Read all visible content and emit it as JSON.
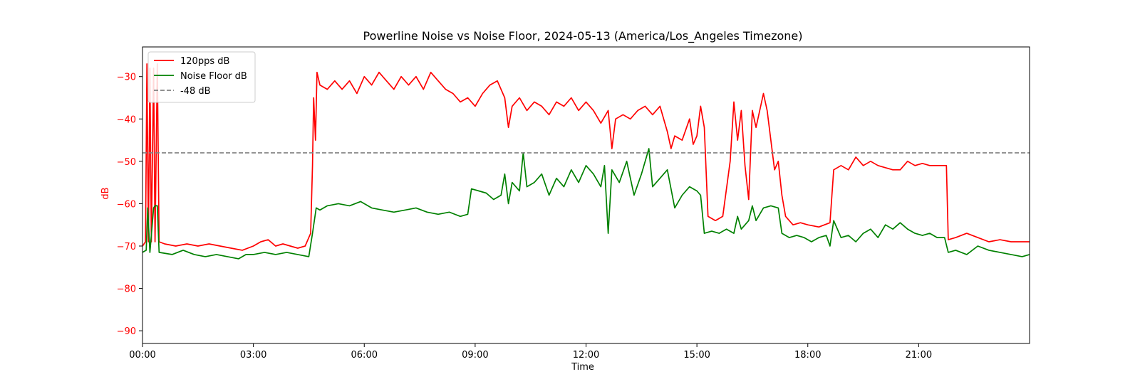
{
  "chart_data": {
    "type": "line",
    "title": "Powerline Noise vs Noise Floor, 2024-05-13 (America/Los_Angeles Timezone)",
    "xlabel": "Time",
    "ylabel": "dB",
    "x_unit": "hours",
    "xlim": [
      0,
      24
    ],
    "ylim": [
      -93,
      -23
    ],
    "x_ticks": [
      {
        "value": 0,
        "label": "00:00"
      },
      {
        "value": 3,
        "label": "03:00"
      },
      {
        "value": 6,
        "label": "06:00"
      },
      {
        "value": 9,
        "label": "09:00"
      },
      {
        "value": 12,
        "label": "12:00"
      },
      {
        "value": 15,
        "label": "15:00"
      },
      {
        "value": 18,
        "label": "18:00"
      },
      {
        "value": 21,
        "label": "21:00"
      }
    ],
    "y_ticks": [
      {
        "value": -30,
        "label": "−30"
      },
      {
        "value": -40,
        "label": "−40"
      },
      {
        "value": -50,
        "label": "−50"
      },
      {
        "value": -60,
        "label": "−60"
      },
      {
        "value": -70,
        "label": "−70"
      },
      {
        "value": -80,
        "label": "−80"
      },
      {
        "value": -90,
        "label": "−90"
      }
    ],
    "grid": false,
    "legend_position": "top-left",
    "series": [
      {
        "name": "120pps dB",
        "color": "#ff0000",
        "style": "solid",
        "points": [
          [
            0.0,
            -70
          ],
          [
            0.08,
            -69
          ],
          [
            0.12,
            -27
          ],
          [
            0.16,
            -69
          ],
          [
            0.2,
            -28
          ],
          [
            0.24,
            -69
          ],
          [
            0.3,
            -28
          ],
          [
            0.34,
            -69
          ],
          [
            0.4,
            -27
          ],
          [
            0.45,
            -69
          ],
          [
            0.6,
            -69.5
          ],
          [
            0.9,
            -70
          ],
          [
            1.2,
            -69.5
          ],
          [
            1.5,
            -70
          ],
          [
            1.8,
            -69.5
          ],
          [
            2.1,
            -70
          ],
          [
            2.4,
            -70.5
          ],
          [
            2.7,
            -71
          ],
          [
            3.0,
            -70
          ],
          [
            3.2,
            -69
          ],
          [
            3.4,
            -68.5
          ],
          [
            3.6,
            -70
          ],
          [
            3.8,
            -69.5
          ],
          [
            4.0,
            -70
          ],
          [
            4.2,
            -70.5
          ],
          [
            4.4,
            -70
          ],
          [
            4.55,
            -67
          ],
          [
            4.6,
            -51
          ],
          [
            4.63,
            -35
          ],
          [
            4.68,
            -45
          ],
          [
            4.72,
            -29
          ],
          [
            4.8,
            -32
          ],
          [
            5.0,
            -33
          ],
          [
            5.2,
            -31
          ],
          [
            5.4,
            -33
          ],
          [
            5.6,
            -31
          ],
          [
            5.8,
            -34
          ],
          [
            6.0,
            -30
          ],
          [
            6.2,
            -32
          ],
          [
            6.4,
            -29
          ],
          [
            6.6,
            -31
          ],
          [
            6.8,
            -33
          ],
          [
            7.0,
            -30
          ],
          [
            7.2,
            -32
          ],
          [
            7.4,
            -30
          ],
          [
            7.6,
            -33
          ],
          [
            7.8,
            -29
          ],
          [
            8.0,
            -31
          ],
          [
            8.2,
            -33
          ],
          [
            8.4,
            -34
          ],
          [
            8.6,
            -36
          ],
          [
            8.8,
            -35
          ],
          [
            9.0,
            -37
          ],
          [
            9.2,
            -34
          ],
          [
            9.4,
            -32
          ],
          [
            9.6,
            -31
          ],
          [
            9.8,
            -35
          ],
          [
            9.9,
            -42
          ],
          [
            10.0,
            -37
          ],
          [
            10.2,
            -35
          ],
          [
            10.4,
            -38
          ],
          [
            10.6,
            -36
          ],
          [
            10.8,
            -37
          ],
          [
            11.0,
            -39
          ],
          [
            11.2,
            -36
          ],
          [
            11.4,
            -37
          ],
          [
            11.6,
            -35
          ],
          [
            11.8,
            -38
          ],
          [
            12.0,
            -36
          ],
          [
            12.2,
            -38
          ],
          [
            12.4,
            -41
          ],
          [
            12.6,
            -38
          ],
          [
            12.7,
            -47
          ],
          [
            12.8,
            -40
          ],
          [
            13.0,
            -39
          ],
          [
            13.2,
            -40
          ],
          [
            13.4,
            -38
          ],
          [
            13.6,
            -37
          ],
          [
            13.8,
            -39
          ],
          [
            14.0,
            -37
          ],
          [
            14.2,
            -43
          ],
          [
            14.3,
            -47
          ],
          [
            14.4,
            -44
          ],
          [
            14.6,
            -45
          ],
          [
            14.8,
            -40
          ],
          [
            14.9,
            -46
          ],
          [
            15.0,
            -44
          ],
          [
            15.1,
            -37
          ],
          [
            15.2,
            -42
          ],
          [
            15.3,
            -63
          ],
          [
            15.5,
            -64
          ],
          [
            15.7,
            -63
          ],
          [
            15.9,
            -50
          ],
          [
            16.0,
            -36
          ],
          [
            16.1,
            -45
          ],
          [
            16.2,
            -38
          ],
          [
            16.3,
            -51
          ],
          [
            16.4,
            -59
          ],
          [
            16.5,
            -38
          ],
          [
            16.6,
            -42
          ],
          [
            16.8,
            -34
          ],
          [
            16.9,
            -38
          ],
          [
            17.0,
            -45
          ],
          [
            17.1,
            -52
          ],
          [
            17.2,
            -50
          ],
          [
            17.3,
            -58
          ],
          [
            17.4,
            -63
          ],
          [
            17.6,
            -65
          ],
          [
            17.8,
            -64.5
          ],
          [
            18.0,
            -65
          ],
          [
            18.3,
            -65.5
          ],
          [
            18.6,
            -64.5
          ],
          [
            18.7,
            -52
          ],
          [
            18.9,
            -51
          ],
          [
            19.1,
            -52
          ],
          [
            19.3,
            -49
          ],
          [
            19.5,
            -51
          ],
          [
            19.7,
            -50
          ],
          [
            19.9,
            -51
          ],
          [
            20.1,
            -51.5
          ],
          [
            20.3,
            -52
          ],
          [
            20.5,
            -52
          ],
          [
            20.7,
            -50
          ],
          [
            20.9,
            -51
          ],
          [
            21.1,
            -50.5
          ],
          [
            21.3,
            -51
          ],
          [
            21.5,
            -51
          ],
          [
            21.75,
            -51
          ],
          [
            21.8,
            -68.5
          ],
          [
            22.0,
            -68
          ],
          [
            22.3,
            -67
          ],
          [
            22.6,
            -68
          ],
          [
            22.9,
            -69
          ],
          [
            23.2,
            -68.5
          ],
          [
            23.5,
            -69
          ],
          [
            23.8,
            -69
          ],
          [
            24.0,
            -69
          ]
        ]
      },
      {
        "name": "Noise Floor dB",
        "color": "#008000",
        "style": "solid",
        "points": [
          [
            0.0,
            -71.5
          ],
          [
            0.1,
            -71
          ],
          [
            0.14,
            -61
          ],
          [
            0.2,
            -71.5
          ],
          [
            0.3,
            -61
          ],
          [
            0.34,
            -60.5
          ],
          [
            0.4,
            -60.5
          ],
          [
            0.45,
            -71.5
          ],
          [
            0.8,
            -72
          ],
          [
            1.1,
            -71
          ],
          [
            1.4,
            -72
          ],
          [
            1.7,
            -72.5
          ],
          [
            2.0,
            -72
          ],
          [
            2.3,
            -72.5
          ],
          [
            2.6,
            -73
          ],
          [
            2.8,
            -72
          ],
          [
            3.0,
            -72
          ],
          [
            3.3,
            -71.5
          ],
          [
            3.6,
            -72
          ],
          [
            3.9,
            -71.5
          ],
          [
            4.2,
            -72
          ],
          [
            4.5,
            -72.5
          ],
          [
            4.6,
            -67
          ],
          [
            4.7,
            -61
          ],
          [
            4.8,
            -61.5
          ],
          [
            5.0,
            -60.5
          ],
          [
            5.3,
            -60
          ],
          [
            5.6,
            -60.5
          ],
          [
            5.9,
            -59.5
          ],
          [
            6.2,
            -61
          ],
          [
            6.5,
            -61.5
          ],
          [
            6.8,
            -62
          ],
          [
            7.1,
            -61.5
          ],
          [
            7.4,
            -61
          ],
          [
            7.7,
            -62
          ],
          [
            8.0,
            -62.5
          ],
          [
            8.3,
            -62
          ],
          [
            8.6,
            -63
          ],
          [
            8.8,
            -62.5
          ],
          [
            8.9,
            -56.5
          ],
          [
            9.1,
            -57
          ],
          [
            9.3,
            -57.5
          ],
          [
            9.5,
            -59
          ],
          [
            9.7,
            -58
          ],
          [
            9.8,
            -53
          ],
          [
            9.9,
            -60
          ],
          [
            10.0,
            -55
          ],
          [
            10.2,
            -57
          ],
          [
            10.3,
            -48
          ],
          [
            10.4,
            -56
          ],
          [
            10.6,
            -55
          ],
          [
            10.8,
            -53
          ],
          [
            11.0,
            -58
          ],
          [
            11.2,
            -54
          ],
          [
            11.4,
            -56
          ],
          [
            11.6,
            -52
          ],
          [
            11.8,
            -55
          ],
          [
            12.0,
            -51
          ],
          [
            12.2,
            -53
          ],
          [
            12.4,
            -56
          ],
          [
            12.5,
            -51
          ],
          [
            12.6,
            -67
          ],
          [
            12.7,
            -52
          ],
          [
            12.9,
            -55
          ],
          [
            13.1,
            -50
          ],
          [
            13.3,
            -58
          ],
          [
            13.5,
            -53
          ],
          [
            13.7,
            -47
          ],
          [
            13.8,
            -56
          ],
          [
            14.0,
            -54
          ],
          [
            14.2,
            -52
          ],
          [
            14.4,
            -61
          ],
          [
            14.6,
            -58
          ],
          [
            14.8,
            -56
          ],
          [
            15.0,
            -57
          ],
          [
            15.1,
            -58
          ],
          [
            15.2,
            -67
          ],
          [
            15.4,
            -66.5
          ],
          [
            15.6,
            -67
          ],
          [
            15.8,
            -66
          ],
          [
            16.0,
            -67
          ],
          [
            16.1,
            -63
          ],
          [
            16.2,
            -66
          ],
          [
            16.4,
            -64
          ],
          [
            16.5,
            -60.5
          ],
          [
            16.6,
            -64
          ],
          [
            16.8,
            -61
          ],
          [
            17.0,
            -60.5
          ],
          [
            17.2,
            -61
          ],
          [
            17.3,
            -67
          ],
          [
            17.5,
            -68
          ],
          [
            17.7,
            -67.5
          ],
          [
            17.9,
            -68
          ],
          [
            18.1,
            -69
          ],
          [
            18.3,
            -68
          ],
          [
            18.5,
            -67.5
          ],
          [
            18.6,
            -70
          ],
          [
            18.7,
            -64
          ],
          [
            18.9,
            -68
          ],
          [
            19.1,
            -67.5
          ],
          [
            19.3,
            -69
          ],
          [
            19.5,
            -67
          ],
          [
            19.7,
            -66
          ],
          [
            19.9,
            -68
          ],
          [
            20.1,
            -65
          ],
          [
            20.3,
            -66
          ],
          [
            20.5,
            -64.5
          ],
          [
            20.7,
            -66
          ],
          [
            20.9,
            -67
          ],
          [
            21.1,
            -67.5
          ],
          [
            21.3,
            -67
          ],
          [
            21.5,
            -68
          ],
          [
            21.7,
            -68
          ],
          [
            21.8,
            -71.5
          ],
          [
            22.0,
            -71
          ],
          [
            22.3,
            -72
          ],
          [
            22.6,
            -70
          ],
          [
            22.9,
            -71
          ],
          [
            23.2,
            -71.5
          ],
          [
            23.5,
            -72
          ],
          [
            23.8,
            -72.5
          ],
          [
            24.0,
            -72
          ]
        ]
      },
      {
        "name": "-48 dB",
        "color": "#808080",
        "style": "dashed",
        "points": [
          [
            0,
            -48
          ],
          [
            24,
            -48
          ]
        ]
      }
    ]
  }
}
